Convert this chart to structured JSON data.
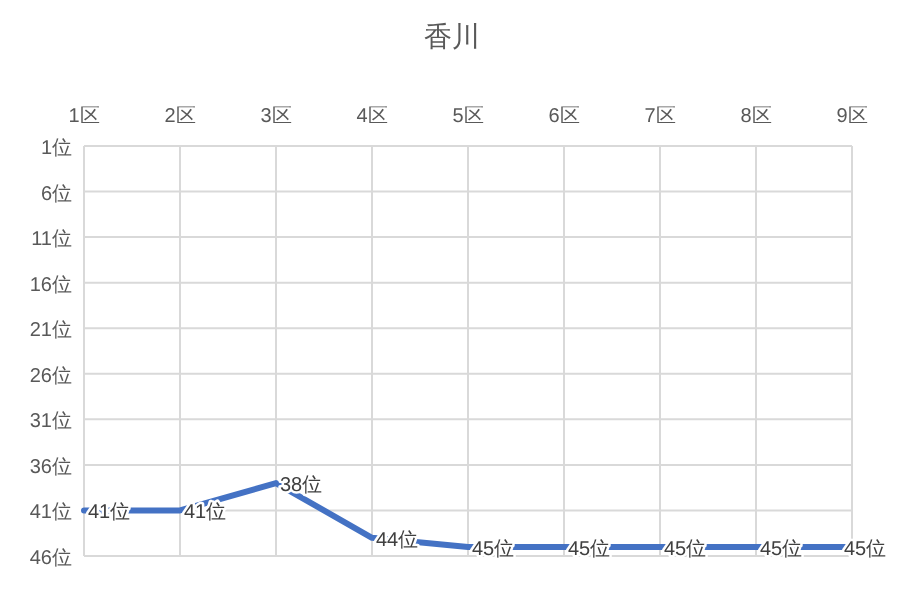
{
  "chart_data": {
    "type": "line",
    "title": "香川",
    "categories": [
      "1区",
      "2区",
      "3区",
      "4区",
      "5区",
      "6区",
      "7区",
      "8区",
      "9区"
    ],
    "series": [
      {
        "color": "#4472c4",
        "values": [
          41,
          41,
          38,
          44,
          45,
          45,
          45,
          45,
          45
        ],
        "value_labels": [
          "41位",
          "41位",
          "38位",
          "44位",
          "45位",
          "45位",
          "45位",
          "45位",
          "45位"
        ]
      }
    ],
    "ylim": [
      46,
      1
    ],
    "yticks": [
      {
        "value": 1,
        "label": "1位"
      },
      {
        "value": 6,
        "label": "6位"
      },
      {
        "value": 11,
        "label": "11位"
      },
      {
        "value": 16,
        "label": "16位"
      },
      {
        "value": 21,
        "label": "21位"
      },
      {
        "value": 26,
        "label": "26位"
      },
      {
        "value": 31,
        "label": "31位"
      },
      {
        "value": 36,
        "label": "36位"
      },
      {
        "value": 41,
        "label": "41位"
      },
      {
        "value": 46,
        "label": "46位"
      }
    ],
    "grid": true,
    "marker": "none",
    "line_style": "solid"
  }
}
